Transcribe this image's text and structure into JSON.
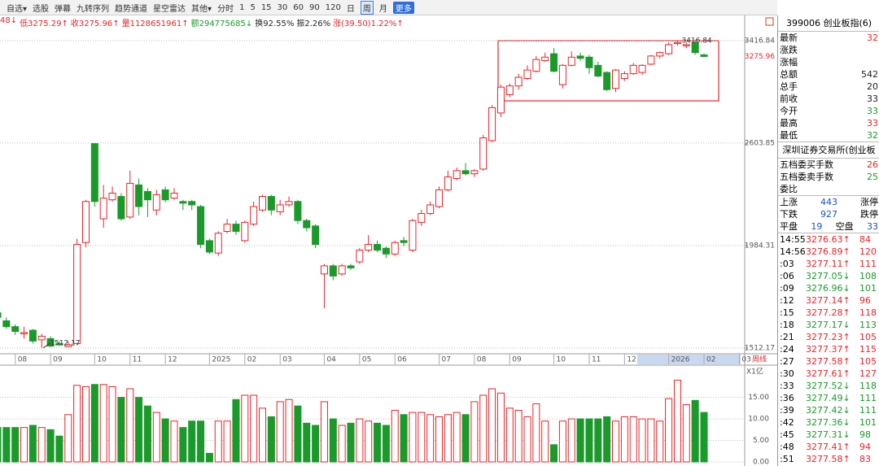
{
  "toolbar": [
    {
      "text": "自选▾"
    },
    {
      "text": "选股"
    },
    {
      "text": "弹幕"
    },
    {
      "text": "九转序列"
    },
    {
      "text": "趋势通道"
    },
    {
      "text": "星空雷达"
    },
    {
      "text": "其他▾"
    },
    {
      "text": "分时"
    },
    {
      "text": "1"
    },
    {
      "text": "5"
    },
    {
      "text": "15"
    },
    {
      "text": "30"
    },
    {
      "text": "60"
    },
    {
      "text": "90"
    },
    {
      "text": "120"
    },
    {
      "text": "日"
    },
    {
      "text": "周",
      "active": true
    },
    {
      "text": "月"
    },
    {
      "text": "更多",
      "button": true
    }
  ],
  "info_line": [
    {
      "text": "48↓",
      "color": "#e8242a"
    },
    {
      "text": "低3275.29↑",
      "color": "#e8242a"
    },
    {
      "text": "收3275.96↑",
      "color": "#e8242a"
    },
    {
      "text": "量1128651961↑",
      "color": "#e8242a"
    },
    {
      "text": "额294775685↓",
      "color": "#1a9a2a"
    },
    {
      "text": "换92.55%",
      "color": "#222222"
    },
    {
      "text": "振2.26%",
      "color": "#222222"
    },
    {
      "text": "涨(39.50)1.22%↑",
      "color": "#e8242a"
    }
  ],
  "chart_data": [
    {
      "type": "candlestick",
      "log_scale": true,
      "grid": true,
      "up_color": "#e8242a",
      "down_color": "#1a9a2a",
      "categories": [
        null,
        null,
        "08",
        null,
        null,
        null,
        "09",
        null,
        null,
        null,
        null,
        "10",
        null,
        null,
        null,
        "11",
        null,
        null,
        null,
        "12",
        null,
        null,
        null,
        null,
        "2025",
        null,
        null,
        null,
        "02",
        null,
        null,
        null,
        "03",
        null,
        null,
        null,
        null,
        "04",
        null,
        null,
        null,
        "05",
        null,
        null,
        null,
        "06",
        null,
        null,
        null,
        null,
        "07",
        null,
        null,
        null,
        "08",
        null,
        null,
        null,
        "09",
        null,
        null,
        null,
        null,
        "10",
        null,
        null,
        null,
        "11",
        null,
        null,
        null,
        "12",
        null,
        null,
        null,
        null,
        "2026",
        null,
        null,
        null,
        "02",
        null,
        null,
        null,
        "03"
      ],
      "period_label": "周线",
      "open": [
        1660,
        1625,
        1600,
        1570,
        1585,
        1545,
        1550,
        1530,
        1518,
        1530,
        2000,
        2600,
        2130,
        2240,
        2260,
        2140,
        2330,
        2290,
        2180,
        2300,
        2250,
        2230,
        2230,
        2200,
        2010,
        1945,
        2060,
        2100,
        2010,
        2100,
        2180,
        2260,
        2170,
        2210,
        2230,
        2120,
        2090,
        1840,
        1880,
        1840,
        1880,
        1900,
        1960,
        1990,
        1970,
        1940,
        2010,
        1960,
        2110,
        2160,
        2200,
        2300,
        2370,
        2420,
        2400,
        2430,
        2620,
        2820,
        2960,
        3030,
        3090,
        3150,
        3240,
        3300,
        3040,
        3200,
        3280,
        3270,
        3200,
        3140,
        3010,
        3090,
        3130,
        3140,
        3210,
        3280,
        3300,
        3390,
        3370,
        3400,
        3290,
        null,
        null,
        null,
        null
      ],
      "high": [
        1680,
        1640,
        1610,
        1600,
        1590,
        1570,
        1560,
        1540,
        1540,
        2020,
        2240,
        2600,
        2330,
        2320,
        2280,
        2420,
        2370,
        2310,
        2300,
        2320,
        2310,
        2240,
        2240,
        2210,
        2020,
        2060,
        2130,
        2120,
        2120,
        2230,
        2270,
        2270,
        2240,
        2260,
        2240,
        2130,
        2100,
        1890,
        1890,
        1890,
        1890,
        1970,
        2040,
        2010,
        1980,
        2010,
        2030,
        2130,
        2180,
        2230,
        2320,
        2420,
        2440,
        2470,
        2430,
        2660,
        2880,
        3040,
        3050,
        3130,
        3200,
        3280,
        3310,
        3350,
        3210,
        3320,
        3310,
        3290,
        3230,
        3150,
        3170,
        3150,
        3220,
        3210,
        3290,
        3320,
        3400,
        3416.84,
        3400,
        3410,
        3300,
        null,
        null,
        null,
        null
      ],
      "low": [
        1620,
        1590,
        1565,
        1550,
        1530,
        1512.17,
        1515,
        1520,
        1525,
        1525,
        1975,
        2200,
        2080,
        2230,
        2120,
        2130,
        2150,
        2140,
        2150,
        2225,
        2240,
        2180,
        2180,
        1970,
        1940,
        1930,
        2050,
        2040,
        2000,
        2090,
        2170,
        2150,
        2150,
        2200,
        2100,
        2060,
        1970,
        1680,
        1810,
        1830,
        1860,
        1890,
        1950,
        1950,
        1920,
        1930,
        1980,
        1950,
        2090,
        2150,
        2190,
        2290,
        2360,
        2390,
        2380,
        2420,
        2610,
        2790,
        2940,
        3000,
        3080,
        3140,
        3230,
        3140,
        3010,
        3190,
        3240,
        3130,
        3100,
        2990,
        2980,
        3070,
        3120,
        3120,
        3200,
        3260,
        3290,
        3370,
        3350,
        3290,
        3270,
        null,
        null,
        null,
        null
      ],
      "close": [
        1640,
        1600,
        1580,
        1575,
        1540,
        1560,
        1520,
        1525,
        1525,
        1990,
        2230,
        2230,
        2250,
        2280,
        2130,
        2340,
        2200,
        2240,
        2270,
        2240,
        2280,
        2220,
        2210,
        1990,
        1950,
        2050,
        2100,
        2060,
        2110,
        2200,
        2260,
        2180,
        2210,
        2230,
        2120,
        2080,
        1990,
        1880,
        1830,
        1880,
        1870,
        1960,
        1990,
        1960,
        1940,
        2000,
        2000,
        2120,
        2160,
        2210,
        2300,
        2380,
        2420,
        2400,
        2420,
        2640,
        2860,
        3020,
        3030,
        3100,
        3160,
        3250,
        3270,
        3150,
        3200,
        3270,
        3260,
        3180,
        3110,
        3000,
        3160,
        3130,
        3200,
        3200,
        3280,
        3310,
        3380,
        3400,
        3380,
        3310,
        3275.96,
        null,
        null,
        null,
        null
      ],
      "ylim": [
        1489,
        3629
      ],
      "yticks": [
        1512.17,
        1984.31,
        2603.85,
        3416.84
      ],
      "last_price": 3275.96,
      "high_label": 3416.84,
      "low_label": 1512.17
    },
    {
      "type": "bar",
      "unit_label": "X1亿",
      "values": [
        8,
        8,
        8,
        8,
        8.5,
        8,
        7.5,
        6,
        11,
        17.8,
        17.5,
        18,
        18,
        17.5,
        15,
        17,
        15,
        13,
        11.5,
        10,
        9.5,
        8,
        9.5,
        9.5,
        2,
        9.5,
        9.5,
        14.5,
        15.5,
        15.5,
        12.5,
        10.5,
        14,
        14.5,
        13,
        9,
        8.5,
        14,
        10,
        8.5,
        9,
        10,
        9.5,
        9,
        8.5,
        12,
        11,
        11.5,
        11.5,
        11,
        10.5,
        11,
        11.5,
        11,
        14,
        15.5,
        17,
        16,
        12.5,
        12,
        10.5,
        13.5,
        9.5,
        4,
        9.5,
        10,
        10,
        10,
        10,
        10.5,
        9.5,
        10.5,
        10.5,
        10,
        10,
        9.5,
        14.7,
        19,
        13.3,
        14.3,
        11.5,
        null,
        null,
        null,
        null
      ],
      "ylim": [
        0,
        22.3
      ],
      "yticks": [
        {
          "value": 0,
          "label": "0.00"
        },
        {
          "value": 5,
          "label": "5.00"
        },
        {
          "value": 10,
          "label": "10.00"
        },
        {
          "value": 15,
          "label": "15.00"
        }
      ]
    }
  ],
  "quote_panel": {
    "title": "399006 创业板指(6)",
    "rows": [
      {
        "label": "最新",
        "value": "32",
        "color": "#e8242a"
      },
      {
        "label": "涨跌"
      },
      {
        "label": "涨幅"
      },
      {
        "label": "总额",
        "value": "542",
        "color": "#222222"
      },
      {
        "label": "总手",
        "value": "20",
        "color": "#222222"
      },
      {
        "label": "前收",
        "value": "33",
        "color": "#222222"
      },
      {
        "label": "今开",
        "value": "33",
        "color": "#1a9a2a"
      },
      {
        "label": "最高",
        "value": "33",
        "color": "#e8242a"
      },
      {
        "label": "最低",
        "value": "32",
        "color": "#1a9a2a"
      }
    ],
    "exchange": "深圳证券交易所(创业板",
    "order_rows": [
      {
        "label": "五档委买手数",
        "value": "26",
        "color": "#e8242a"
      },
      {
        "label": "五档委卖手数",
        "value": "25",
        "color": "#1a9a2a"
      },
      {
        "label": "委比"
      }
    ],
    "stats": [
      [
        "上涨",
        "443",
        "涨停"
      ],
      [
        "下跌",
        "927",
        "跌停"
      ],
      [
        "平盘",
        "19",
        "空盘",
        "33"
      ]
    ],
    "trades": [
      [
        "14:55",
        "3276.63↑",
        "84"
      ],
      [
        "14:56",
        "3276.89↑",
        "120"
      ],
      [
        ":03",
        "3277.11↑",
        "111"
      ],
      [
        ":06",
        "3277.05↓",
        "108"
      ],
      [
        ":09",
        "3276.96↓",
        "101"
      ],
      [
        ":12",
        "3277.14↑",
        "96"
      ],
      [
        ":15",
        "3277.28↑",
        "118"
      ],
      [
        ":18",
        "3277.17↓",
        "113"
      ],
      [
        ":21",
        "3277.23↑",
        "105"
      ],
      [
        ":24",
        "3277.37↑",
        "115"
      ],
      [
        ":27",
        "3277.58↑",
        "105"
      ],
      [
        ":30",
        "3277.61↑",
        "127"
      ],
      [
        ":33",
        "3277.52↓",
        "118"
      ],
      [
        ":36",
        "3277.49↓",
        "111"
      ],
      [
        ":39",
        "3277.42↓",
        "111"
      ],
      [
        ":42",
        "3277.36↓",
        "101"
      ],
      [
        ":45",
        "3277.31↓",
        "98"
      ],
      [
        ":48",
        "3277.41↑",
        "94"
      ],
      [
        ":51",
        "3277.58↑",
        "83"
      ]
    ]
  }
}
